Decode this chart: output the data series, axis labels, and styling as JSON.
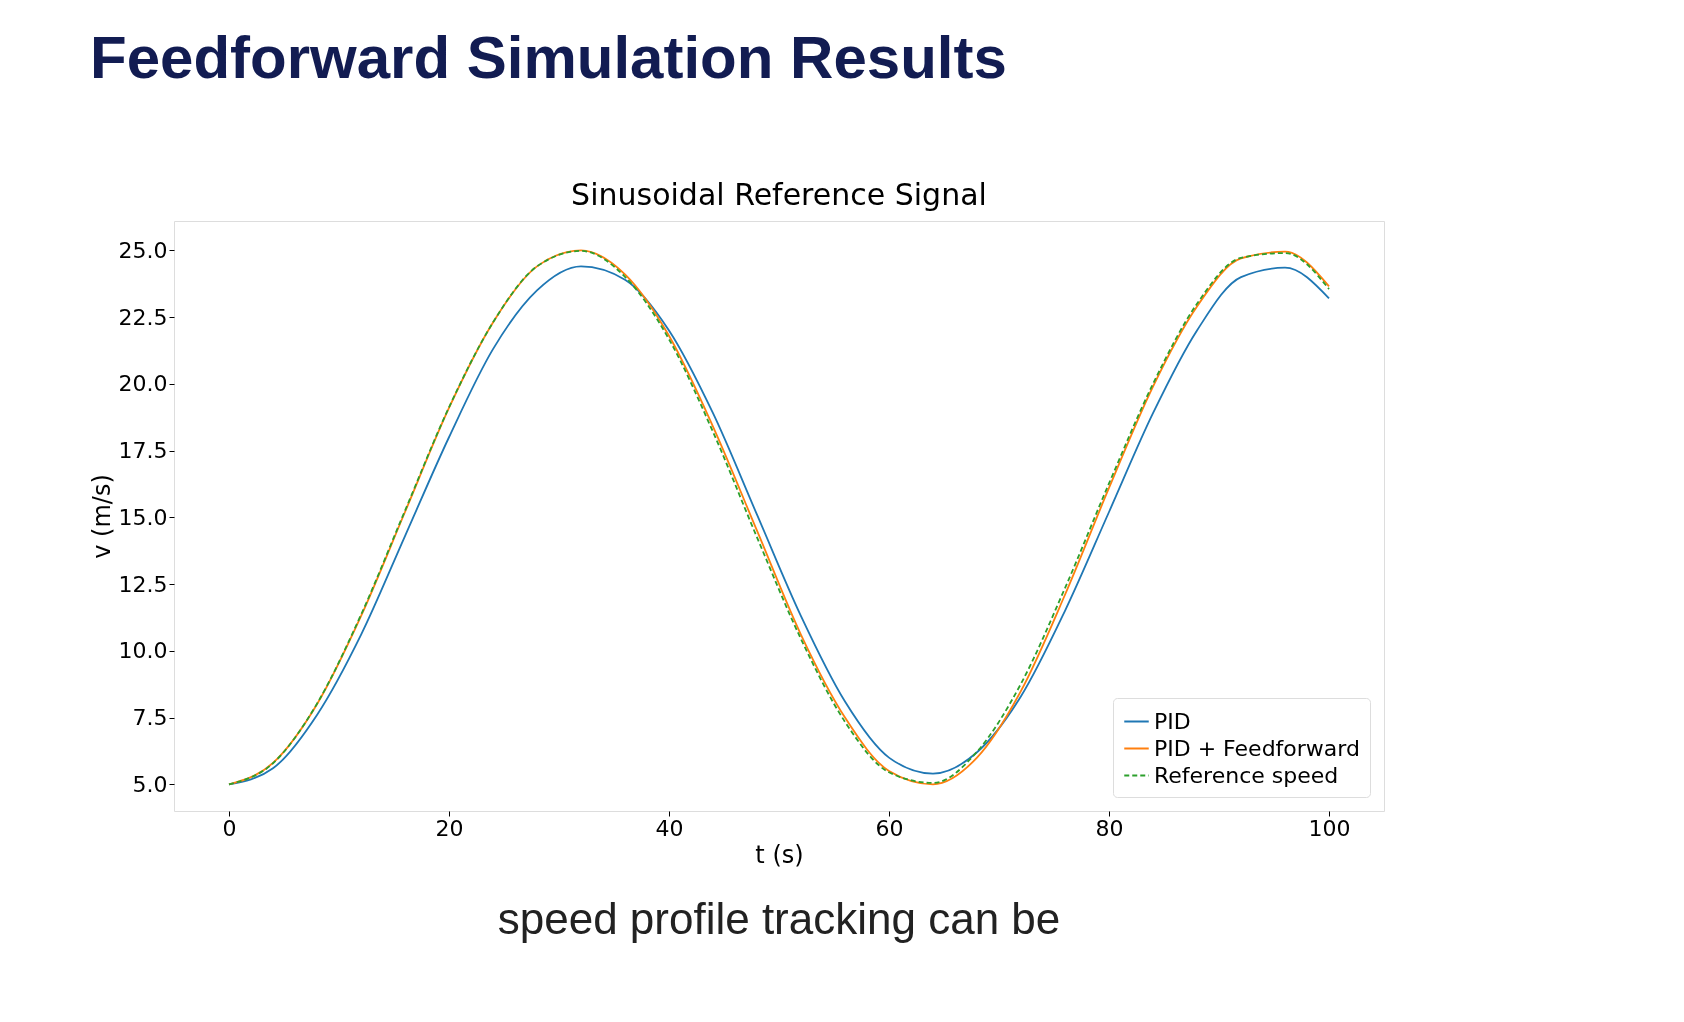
{
  "chart_data": {
    "type": "line",
    "title": "Feedforward Simulation Results",
    "subtitle": "Sinusoidal Reference Signal",
    "xlabel": "t (s)",
    "ylabel": "v (m/s)",
    "x": [
      0,
      4,
      8,
      12,
      16,
      20,
      24,
      28,
      32,
      36,
      40,
      44,
      48,
      52,
      56,
      60,
      64,
      68,
      72,
      76,
      80,
      84,
      88,
      92,
      96,
      100
    ],
    "series": [
      {
        "name": "PID",
        "color": "#1f77b4",
        "line_style": "solid",
        "values": [
          5.0,
          5.6,
          7.6,
          10.6,
          14.3,
          18.0,
          21.3,
          23.5,
          24.4,
          23.9,
          22.0,
          18.9,
          15.1,
          11.3,
          8.1,
          6.0,
          5.4,
          6.2,
          8.3,
          11.5,
          15.2,
          18.9,
          22.0,
          24.0,
          24.35,
          23.2
        ]
      },
      {
        "name": "PID + Feedforward",
        "color": "#ff7f0e",
        "line_style": "solid",
        "values": [
          5.0,
          5.8,
          8.0,
          11.3,
          15.2,
          19.1,
          22.3,
          24.4,
          25.0,
          24.1,
          21.8,
          18.4,
          14.5,
          10.6,
          7.5,
          5.5,
          5.0,
          6.0,
          8.5,
          12.1,
          16.1,
          19.9,
          22.9,
          24.7,
          24.95,
          23.65
        ]
      },
      {
        "name": "Reference speed",
        "color": "#2ca02c",
        "line_style": "dashed",
        "values": [
          5.0,
          5.79,
          8.02,
          11.35,
          15.25,
          19.12,
          22.3,
          24.4,
          24.98,
          24.01,
          21.67,
          18.2,
          14.25,
          10.44,
          7.34,
          5.45,
          5.05,
          6.22,
          8.77,
          12.35,
          16.27,
          20.0,
          23.0,
          24.72,
          24.9,
          23.55
        ]
      }
    ],
    "xlim": [
      -5,
      105
    ],
    "ylim": [
      4.0,
      26.1
    ],
    "xticks": [
      0,
      20,
      40,
      60,
      80,
      100
    ],
    "yticks": [
      {
        "value": 5,
        "label": "5.0"
      },
      {
        "value": 7.5,
        "label": "7.5"
      },
      {
        "value": 10,
        "label": "10.0"
      },
      {
        "value": 12.5,
        "label": "12.5"
      },
      {
        "value": 15,
        "label": "15.0"
      },
      {
        "value": 17.5,
        "label": "17.5"
      },
      {
        "value": 20,
        "label": "20.0"
      },
      {
        "value": 22.5,
        "label": "22.5"
      },
      {
        "value": 25,
        "label": "25.0"
      }
    ],
    "grid": false,
    "legend": "bottom right",
    "marker": "none",
    "annotations": [
      "speed profile tracking can be"
    ]
  }
}
